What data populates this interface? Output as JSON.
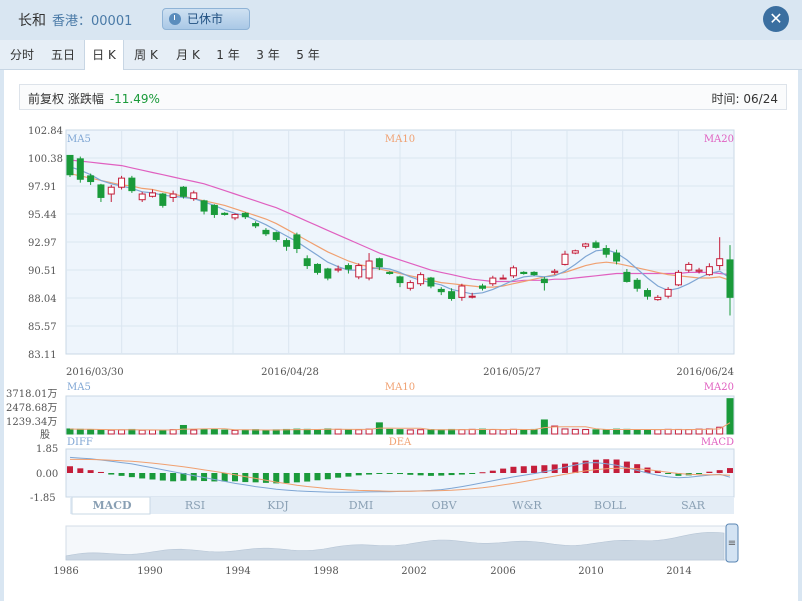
{
  "header": {
    "name": "长和",
    "market_code": "香港：00001",
    "status": "已休市",
    "close_icon": "close-icon"
  },
  "tabs": [
    {
      "label": "分时",
      "active": false
    },
    {
      "label": "五日",
      "active": false
    },
    {
      "label": "日 K",
      "active": true
    },
    {
      "label": "周 K",
      "active": false
    },
    {
      "label": "月 K",
      "active": false
    },
    {
      "label": "1 年",
      "active": false
    },
    {
      "label": "3 年",
      "active": false
    },
    {
      "label": "5 年",
      "active": false
    }
  ],
  "info": {
    "label": "前复权 涨跌幅",
    "change": "-11.49%",
    "time_label": "时间: 06/24"
  },
  "colors": {
    "up": "#c41e3a",
    "down": "#1a9a3a",
    "ma5": "#7fa6d4",
    "ma10": "#f0a070",
    "ma20": "#e060c0"
  },
  "chart_data": [
    {
      "type": "candlestick",
      "title": "",
      "y_ticks": [
        "102.84",
        "100.38",
        "97.91",
        "95.44",
        "92.97",
        "90.51",
        "88.04",
        "85.57",
        "83.11"
      ],
      "ylim": [
        83.11,
        102.84
      ],
      "x_ticks": [
        "2016/03/30",
        "2016/04/28",
        "2016/05/27",
        "2016/06/24"
      ],
      "legend": [
        "MA5",
        "MA10",
        "MA20"
      ],
      "candles": [
        [
          100.6,
          98.9,
          100.6,
          98.7
        ],
        [
          100.3,
          98.5,
          100.5,
          98.2
        ],
        [
          98.8,
          98.3,
          99.0,
          98.0
        ],
        [
          98.0,
          96.9,
          98.1,
          96.5
        ],
        [
          97.2,
          97.8,
          98.0,
          96.5
        ],
        [
          97.8,
          98.6,
          98.8,
          97.6
        ],
        [
          98.6,
          97.5,
          98.8,
          97.3
        ],
        [
          96.7,
          97.2,
          97.4,
          96.5
        ],
        [
          97.0,
          97.3,
          97.6,
          96.9
        ],
        [
          97.2,
          96.2,
          97.3,
          96.0
        ],
        [
          96.9,
          97.2,
          97.5,
          96.5
        ],
        [
          97.8,
          97.0,
          97.9,
          96.8
        ],
        [
          96.8,
          97.3,
          97.5,
          96.6
        ],
        [
          96.6,
          95.7,
          96.7,
          95.4
        ],
        [
          96.2,
          95.4,
          96.3,
          95.1
        ],
        [
          95.5,
          95.4,
          95.6,
          95.3
        ],
        [
          95.1,
          95.4,
          95.5,
          94.9
        ],
        [
          95.5,
          95.2,
          95.6,
          95.0
        ],
        [
          94.6,
          94.4,
          94.8,
          94.2
        ],
        [
          94.0,
          93.7,
          94.2,
          93.5
        ],
        [
          93.8,
          93.2,
          93.9,
          93.0
        ],
        [
          93.1,
          92.6,
          93.3,
          92.2
        ],
        [
          93.6,
          92.4,
          93.8,
          92.0
        ],
        [
          91.5,
          90.9,
          91.8,
          90.6
        ],
        [
          91.0,
          90.3,
          91.1,
          90.1
        ],
        [
          90.6,
          89.8,
          90.7,
          89.6
        ],
        [
          90.5,
          90.6,
          90.9,
          90.3
        ],
        [
          90.9,
          90.6,
          91.1,
          90.2
        ],
        [
          89.9,
          90.9,
          91.1,
          89.7
        ],
        [
          89.8,
          91.3,
          92.0,
          89.6
        ],
        [
          91.5,
          90.8,
          91.6,
          90.5
        ],
        [
          90.3,
          90.2,
          90.4,
          90.1
        ],
        [
          89.9,
          89.4,
          90.0,
          89.0
        ],
        [
          88.9,
          89.4,
          89.6,
          88.7
        ],
        [
          89.3,
          90.1,
          90.3,
          89.1
        ],
        [
          89.8,
          89.1,
          89.9,
          88.9
        ],
        [
          88.8,
          88.6,
          89.0,
          88.3
        ],
        [
          88.6,
          88.0,
          88.9,
          87.8
        ],
        [
          88.1,
          89.1,
          89.3,
          87.8
        ],
        [
          88.2,
          88.2,
          88.5,
          88.0
        ],
        [
          89.1,
          88.9,
          89.3,
          88.7
        ],
        [
          89.3,
          89.8,
          90.0,
          89.1
        ],
        [
          89.8,
          89.8,
          90.1,
          89.7
        ],
        [
          90.0,
          90.7,
          90.9,
          89.8
        ],
        [
          90.3,
          90.2,
          90.4,
          90.1
        ],
        [
          90.3,
          90.1,
          90.4,
          90.0
        ],
        [
          89.7,
          89.4,
          89.9,
          88.7
        ],
        [
          90.3,
          90.4,
          90.6,
          90.1
        ],
        [
          91.0,
          91.9,
          92.2,
          90.9
        ],
        [
          92.0,
          92.2,
          92.3,
          91.9
        ],
        [
          92.6,
          92.8,
          92.9,
          92.4
        ],
        [
          92.9,
          92.5,
          93.1,
          92.4
        ],
        [
          92.4,
          91.9,
          92.7,
          91.6
        ],
        [
          92.0,
          91.3,
          92.3,
          91.0
        ],
        [
          90.3,
          89.5,
          90.6,
          89.4
        ],
        [
          89.6,
          88.9,
          89.8,
          88.6
        ],
        [
          88.7,
          88.2,
          88.9,
          87.9
        ],
        [
          87.9,
          88.1,
          88.3,
          87.8
        ],
        [
          88.2,
          88.8,
          89.0,
          88.0
        ],
        [
          89.2,
          90.3,
          90.5,
          89.1
        ],
        [
          90.5,
          91.0,
          91.2,
          90.3
        ],
        [
          90.4,
          90.5,
          90.7,
          90.2
        ],
        [
          90.1,
          90.8,
          91.1,
          90.0
        ],
        [
          90.9,
          91.5,
          93.4,
          90.5
        ],
        [
          91.4,
          88.1,
          92.7,
          86.5
        ]
      ],
      "ma5": [
        99.6,
        99.3,
        98.9,
        98.4,
        98.1,
        97.9,
        97.7,
        97.4,
        97.3,
        97.1,
        97.0,
        96.9,
        96.8,
        96.5,
        96.2,
        95.8,
        95.5,
        95.3,
        94.9,
        94.5,
        94.0,
        93.5,
        93.0,
        92.4,
        91.8,
        91.2,
        90.8,
        90.5,
        90.5,
        90.6,
        90.7,
        90.6,
        90.3,
        89.9,
        89.6,
        89.4,
        89.2,
        88.8,
        88.6,
        88.4,
        88.5,
        88.8,
        89.2,
        89.6,
        89.9,
        90.0,
        89.9,
        90.0,
        90.4,
        91.0,
        91.7,
        92.2,
        92.3,
        92.0,
        91.4,
        90.6,
        89.8,
        89.1,
        88.7,
        88.9,
        89.3,
        89.8,
        90.2,
        90.4,
        89.8
      ],
      "ma10": [
        99.0,
        98.8,
        98.6,
        98.4,
        98.2,
        98.0,
        97.9,
        97.7,
        97.6,
        97.4,
        97.2,
        97.0,
        96.8,
        96.6,
        96.4,
        96.2,
        95.9,
        95.6,
        95.3,
        95.0,
        94.6,
        94.1,
        93.6,
        93.1,
        92.6,
        92.1,
        91.7,
        91.3,
        91.0,
        90.8,
        90.6,
        90.4,
        90.2,
        90.0,
        89.8,
        89.6,
        89.4,
        89.3,
        89.2,
        89.1,
        89.0,
        89.0,
        89.1,
        89.3,
        89.5,
        89.7,
        89.9,
        90.1,
        90.3,
        90.6,
        90.9,
        91.1,
        91.2,
        91.1,
        90.9,
        90.7,
        90.5,
        90.3,
        90.1,
        90.0,
        89.9,
        89.8,
        89.8,
        89.9,
        89.6
      ],
      "ma20": [
        100.2,
        100.1,
        100.0,
        99.9,
        99.8,
        99.7,
        99.5,
        99.3,
        99.1,
        98.9,
        98.7,
        98.5,
        98.3,
        98.1,
        97.8,
        97.5,
        97.2,
        96.9,
        96.6,
        96.3,
        96.0,
        95.6,
        95.2,
        94.8,
        94.4,
        94.0,
        93.6,
        93.2,
        92.8,
        92.4,
        92.0,
        91.7,
        91.4,
        91.1,
        90.8,
        90.5,
        90.3,
        90.1,
        89.9,
        89.7,
        89.6,
        89.5,
        89.5,
        89.5,
        89.6,
        89.6,
        89.6,
        89.7,
        89.7,
        89.8,
        89.9,
        90.0,
        90.1,
        90.2,
        90.2,
        90.2,
        90.2,
        90.2,
        90.2,
        90.2,
        90.3,
        90.3,
        90.3,
        90.2,
        90.1
      ]
    },
    {
      "type": "bar",
      "title": "",
      "y_ticks": [
        "3718.01万",
        "2478.68万",
        "1239.34万"
      ],
      "unit": "股",
      "ylim": [
        0,
        3718.01
      ],
      "legend": [
        "MA5",
        "MA10",
        "MA20"
      ],
      "values": [
        520,
        480,
        450,
        420,
        400,
        430,
        470,
        390,
        410,
        380,
        450,
        880,
        420,
        510,
        470,
        400,
        380,
        420,
        450,
        400,
        430,
        470,
        500,
        480,
        450,
        520,
        480,
        460,
        440,
        500,
        1150,
        480,
        450,
        420,
        440,
        460,
        430,
        470,
        450,
        480,
        500,
        460,
        430,
        480,
        450,
        470,
        1450,
        820,
        520,
        480,
        460,
        430,
        450,
        500,
        480,
        460,
        430,
        450,
        480,
        470,
        460,
        500,
        520,
        700,
        3650
      ]
    },
    {
      "type": "bar",
      "title": "",
      "y_ticks": [
        "1.85",
        "0.00",
        "-1.85"
      ],
      "ylim": [
        -1.85,
        1.85
      ],
      "legend": [
        "DIFF",
        "DEA",
        "MACD"
      ],
      "values": [
        0.52,
        0.36,
        0.22,
        0.08,
        -0.12,
        -0.22,
        -0.32,
        -0.42,
        -0.5,
        -0.58,
        -0.64,
        -0.6,
        -0.58,
        -0.62,
        -0.65,
        -0.66,
        -0.64,
        -0.7,
        -0.72,
        -0.76,
        -0.8,
        -0.78,
        -0.72,
        -0.66,
        -0.56,
        -0.48,
        -0.36,
        -0.28,
        -0.18,
        -0.12,
        -0.06,
        -0.04,
        -0.08,
        -0.14,
        -0.18,
        -0.22,
        -0.2,
        -0.16,
        -0.12,
        -0.06,
        0.06,
        0.18,
        0.34,
        0.48,
        0.52,
        0.56,
        0.6,
        0.66,
        0.72,
        0.82,
        0.95,
        1.02,
        1.06,
        1.04,
        0.88,
        0.68,
        0.42,
        0.18,
        -0.06,
        -0.22,
        -0.18,
        -0.06,
        0.1,
        0.22,
        0.38
      ],
      "diff": [
        1.2,
        1.15,
        1.1,
        1.0,
        0.9,
        0.8,
        0.7,
        0.55,
        0.4,
        0.25,
        0.1,
        -0.05,
        -0.2,
        -0.35,
        -0.5,
        -0.65,
        -0.8,
        -0.92,
        -1.05,
        -1.15,
        -1.25,
        -1.32,
        -1.38,
        -1.42,
        -1.45,
        -1.47,
        -1.48,
        -1.48,
        -1.47,
        -1.46,
        -1.45,
        -1.44,
        -1.42,
        -1.4,
        -1.38,
        -1.34,
        -1.28,
        -1.18,
        -1.05,
        -0.9,
        -0.75,
        -0.6,
        -0.45,
        -0.3,
        -0.18,
        -0.05,
        0.1,
        0.25,
        0.45,
        0.62,
        0.78,
        0.8,
        0.72,
        0.6,
        0.4,
        0.2,
        0.0,
        -0.18,
        -0.3,
        -0.36,
        -0.32,
        -0.24,
        -0.16,
        -0.1,
        -0.32
      ],
      "dea": [
        1.05,
        1.05,
        1.04,
        1.02,
        0.99,
        0.95,
        0.9,
        0.84,
        0.76,
        0.68,
        0.58,
        0.48,
        0.36,
        0.24,
        0.12,
        0.0,
        -0.14,
        -0.28,
        -0.42,
        -0.56,
        -0.7,
        -0.82,
        -0.94,
        -1.04,
        -1.12,
        -1.2,
        -1.26,
        -1.3,
        -1.34,
        -1.36,
        -1.38,
        -1.4,
        -1.4,
        -1.4,
        -1.39,
        -1.38,
        -1.36,
        -1.33,
        -1.28,
        -1.22,
        -1.14,
        -1.04,
        -0.92,
        -0.8,
        -0.66,
        -0.52,
        -0.38,
        -0.24,
        -0.1,
        0.04,
        0.16,
        0.26,
        0.33,
        0.37,
        0.37,
        0.33,
        0.26,
        0.16,
        0.06,
        -0.04,
        -0.1,
        -0.13,
        -0.14,
        -0.14,
        -0.18
      ]
    },
    {
      "type": "area",
      "title": "",
      "x_ticks": [
        "1986",
        "1990",
        "1994",
        "1998",
        "2002",
        "2006",
        "2010",
        "2014"
      ]
    }
  ],
  "indicator_tabs": [
    "MACD",
    "RSI",
    "KDJ",
    "DMI",
    "OBV",
    "W&R",
    "BOLL",
    "SAR"
  ]
}
